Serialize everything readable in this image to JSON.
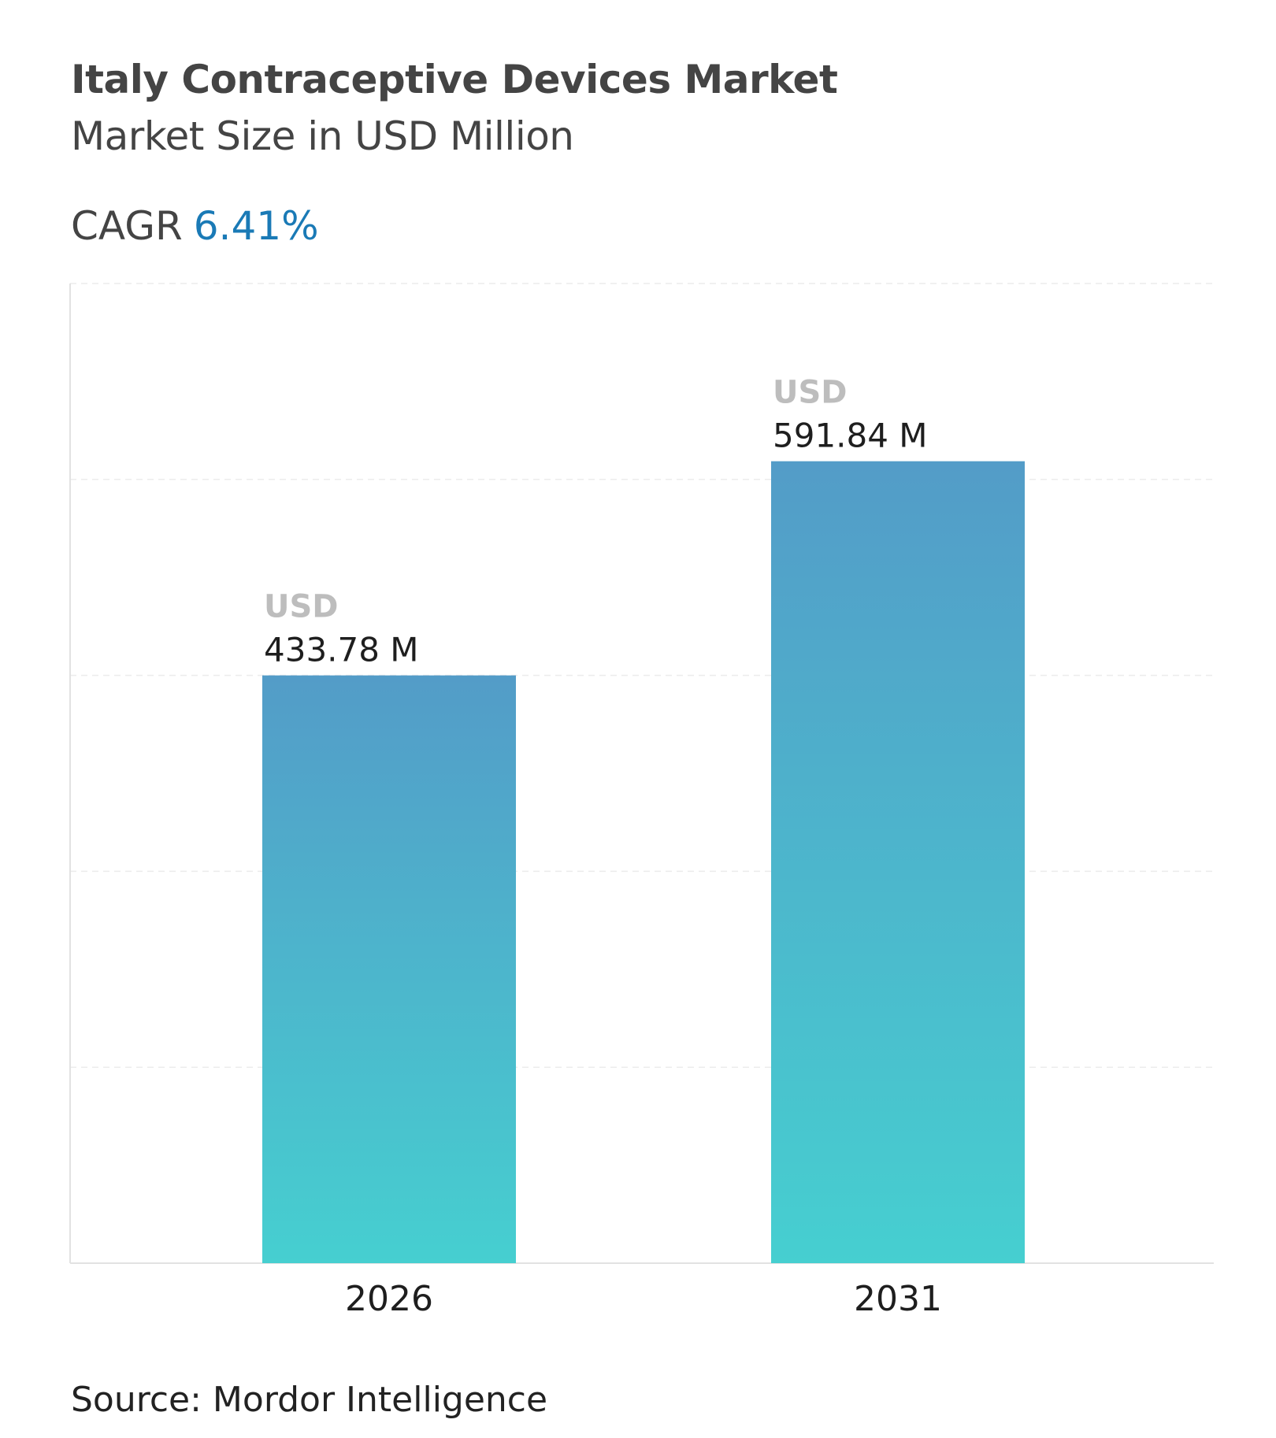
{
  "header": {
    "title": "Italy Contraceptive Devices Market",
    "subtitle": "Market Size in USD Million",
    "cagr_label": "CAGR",
    "cagr_value": "6.41%"
  },
  "source": "Source: Mordor Intelligence",
  "colors": {
    "bar_top": "#539cc8",
    "bar_bottom": "#46cfd0",
    "cagr": "#1a7ab6",
    "title": "#444444"
  },
  "chart_data": {
    "type": "bar",
    "categories": [
      "2026",
      "2031"
    ],
    "values": [
      433.78,
      591.84
    ],
    "data_labels": [
      {
        "unit": "USD",
        "value": "433.78 M"
      },
      {
        "unit": "USD",
        "value": "591.84 M"
      }
    ],
    "title": "Italy Contraceptive Devices Market",
    "subtitle": "Market Size in USD Million",
    "xlabel": "",
    "ylabel": "",
    "ylim": [
      0,
      723
    ],
    "grid": true,
    "legend": "none"
  }
}
